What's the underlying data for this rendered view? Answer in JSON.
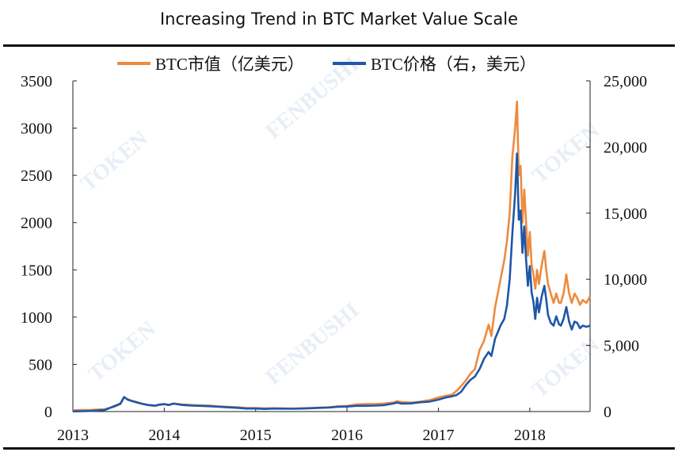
{
  "header": {
    "title": "Increasing Trend in BTC Market Value Scale"
  },
  "chart_data": {
    "type": "line",
    "title": "Increasing Trend in BTC Market Value Scale",
    "xlabel": "",
    "ylabel": "",
    "x_ticks": [
      "2013",
      "2014",
      "2015",
      "2016",
      "2017",
      "2018"
    ],
    "y_left": {
      "lim": [
        0,
        3500
      ],
      "ticks": [
        "0",
        "500",
        "1000",
        "1500",
        "2000",
        "2500",
        "3000",
        "3500"
      ]
    },
    "y_right": {
      "lim": [
        0,
        25000
      ],
      "ticks": [
        "0",
        "5,000",
        "10,000",
        "15,000",
        "20,000",
        "25,000"
      ]
    },
    "legend": {
      "position": "top-center"
    },
    "grid": false,
    "series": [
      {
        "name": "BTC市值（亿美元）",
        "axis": "left",
        "color": "#ed8b3e",
        "points": [
          [
            2013.0,
            15
          ],
          [
            2013.2,
            18
          ],
          [
            2013.35,
            25
          ],
          [
            2013.45,
            50
          ],
          [
            2013.52,
            80
          ],
          [
            2013.56,
            150
          ],
          [
            2013.6,
            130
          ],
          [
            2013.65,
            110
          ],
          [
            2013.7,
            95
          ],
          [
            2013.75,
            85
          ],
          [
            2013.82,
            70
          ],
          [
            2013.9,
            60
          ],
          [
            2013.95,
            75
          ],
          [
            2014.0,
            80
          ],
          [
            2014.05,
            70
          ],
          [
            2014.1,
            85
          ],
          [
            2014.2,
            75
          ],
          [
            2014.3,
            70
          ],
          [
            2014.4,
            65
          ],
          [
            2014.5,
            62
          ],
          [
            2014.6,
            55
          ],
          [
            2014.7,
            50
          ],
          [
            2014.8,
            45
          ],
          [
            2014.9,
            38
          ],
          [
            2015.0,
            38
          ],
          [
            2015.1,
            33
          ],
          [
            2015.2,
            35
          ],
          [
            2015.3,
            33
          ],
          [
            2015.4,
            32
          ],
          [
            2015.5,
            34
          ],
          [
            2015.6,
            38
          ],
          [
            2015.7,
            42
          ],
          [
            2015.8,
            45
          ],
          [
            2015.9,
            55
          ],
          [
            2016.0,
            60
          ],
          [
            2016.1,
            75
          ],
          [
            2016.2,
            80
          ],
          [
            2016.3,
            80
          ],
          [
            2016.4,
            85
          ],
          [
            2016.5,
            95
          ],
          [
            2016.55,
            110
          ],
          [
            2016.6,
            100
          ],
          [
            2016.7,
            95
          ],
          [
            2016.8,
            105
          ],
          [
            2016.9,
            120
          ],
          [
            2017.0,
            150
          ],
          [
            2017.05,
            160
          ],
          [
            2017.1,
            170
          ],
          [
            2017.15,
            180
          ],
          [
            2017.2,
            220
          ],
          [
            2017.25,
            270
          ],
          [
            2017.3,
            330
          ],
          [
            2017.35,
            400
          ],
          [
            2017.4,
            450
          ],
          [
            2017.45,
            650
          ],
          [
            2017.5,
            750
          ],
          [
            2017.55,
            920
          ],
          [
            2017.58,
            800
          ],
          [
            2017.62,
            1100
          ],
          [
            2017.65,
            1250
          ],
          [
            2017.68,
            1400
          ],
          [
            2017.72,
            1600
          ],
          [
            2017.75,
            1800
          ],
          [
            2017.78,
            2100
          ],
          [
            2017.81,
            2700
          ],
          [
            2017.84,
            3000
          ],
          [
            2017.86,
            3280
          ],
          [
            2017.88,
            2500
          ],
          [
            2017.9,
            2600
          ],
          [
            2017.92,
            2000
          ],
          [
            2017.94,
            2350
          ],
          [
            2017.96,
            2000
          ],
          [
            2017.98,
            1650
          ],
          [
            2018.0,
            1900
          ],
          [
            2018.02,
            1550
          ],
          [
            2018.04,
            1450
          ],
          [
            2018.06,
            1300
          ],
          [
            2018.08,
            1500
          ],
          [
            2018.1,
            1350
          ],
          [
            2018.13,
            1550
          ],
          [
            2018.16,
            1700
          ],
          [
            2018.18,
            1500
          ],
          [
            2018.2,
            1350
          ],
          [
            2018.23,
            1250
          ],
          [
            2018.26,
            1150
          ],
          [
            2018.29,
            1250
          ],
          [
            2018.32,
            1150
          ],
          [
            2018.34,
            1150
          ],
          [
            2018.37,
            1250
          ],
          [
            2018.4,
            1450
          ],
          [
            2018.43,
            1250
          ],
          [
            2018.46,
            1150
          ],
          [
            2018.49,
            1250
          ],
          [
            2018.52,
            1200
          ],
          [
            2018.55,
            1130
          ],
          [
            2018.58,
            1180
          ],
          [
            2018.62,
            1150
          ],
          [
            2018.66,
            1220
          ]
        ]
      },
      {
        "name": "BTC价格（右，美元）",
        "axis": "right",
        "color": "#1f56a8",
        "points": [
          [
            2013.0,
            13
          ],
          [
            2013.2,
            50
          ],
          [
            2013.35,
            120
          ],
          [
            2013.45,
            400
          ],
          [
            2013.52,
            600
          ],
          [
            2013.56,
            1100
          ],
          [
            2013.6,
            900
          ],
          [
            2013.65,
            800
          ],
          [
            2013.7,
            700
          ],
          [
            2013.75,
            600
          ],
          [
            2013.82,
            500
          ],
          [
            2013.9,
            450
          ],
          [
            2013.95,
            520
          ],
          [
            2014.0,
            560
          ],
          [
            2014.05,
            500
          ],
          [
            2014.1,
            600
          ],
          [
            2014.2,
            500
          ],
          [
            2014.3,
            450
          ],
          [
            2014.4,
            430
          ],
          [
            2014.5,
            400
          ],
          [
            2014.6,
            360
          ],
          [
            2014.7,
            320
          ],
          [
            2014.8,
            280
          ],
          [
            2014.9,
            230
          ],
          [
            2015.0,
            230
          ],
          [
            2015.1,
            200
          ],
          [
            2015.2,
            230
          ],
          [
            2015.3,
            220
          ],
          [
            2015.4,
            210
          ],
          [
            2015.5,
            230
          ],
          [
            2015.6,
            250
          ],
          [
            2015.7,
            280
          ],
          [
            2015.8,
            300
          ],
          [
            2015.9,
            360
          ],
          [
            2016.0,
            380
          ],
          [
            2016.1,
            430
          ],
          [
            2016.2,
            440
          ],
          [
            2016.3,
            450
          ],
          [
            2016.4,
            480
          ],
          [
            2016.5,
            600
          ],
          [
            2016.55,
            680
          ],
          [
            2016.6,
            600
          ],
          [
            2016.7,
            620
          ],
          [
            2016.8,
            700
          ],
          [
            2016.9,
            750
          ],
          [
            2017.0,
            900
          ],
          [
            2017.05,
            1000
          ],
          [
            2017.1,
            1100
          ],
          [
            2017.15,
            1150
          ],
          [
            2017.2,
            1250
          ],
          [
            2017.25,
            1500
          ],
          [
            2017.3,
            2000
          ],
          [
            2017.35,
            2400
          ],
          [
            2017.4,
            2650
          ],
          [
            2017.45,
            3200
          ],
          [
            2017.5,
            4000
          ],
          [
            2017.55,
            4500
          ],
          [
            2017.58,
            4200
          ],
          [
            2017.62,
            5500
          ],
          [
            2017.65,
            6000
          ],
          [
            2017.68,
            6500
          ],
          [
            2017.72,
            7000
          ],
          [
            2017.75,
            8000
          ],
          [
            2017.78,
            10000
          ],
          [
            2017.81,
            13500
          ],
          [
            2017.84,
            16500
          ],
          [
            2017.86,
            19500
          ],
          [
            2017.88,
            14500
          ],
          [
            2017.9,
            15200
          ],
          [
            2017.92,
            12000
          ],
          [
            2017.94,
            14000
          ],
          [
            2017.96,
            11500
          ],
          [
            2017.98,
            9500
          ],
          [
            2018.0,
            11000
          ],
          [
            2018.02,
            9000
          ],
          [
            2018.04,
            8300
          ],
          [
            2018.06,
            7000
          ],
          [
            2018.08,
            8600
          ],
          [
            2018.1,
            7500
          ],
          [
            2018.13,
            8700
          ],
          [
            2018.16,
            9500
          ],
          [
            2018.18,
            8500
          ],
          [
            2018.2,
            7300
          ],
          [
            2018.23,
            6700
          ],
          [
            2018.26,
            6500
          ],
          [
            2018.29,
            7200
          ],
          [
            2018.32,
            6600
          ],
          [
            2018.34,
            6500
          ],
          [
            2018.37,
            7000
          ],
          [
            2018.4,
            7900
          ],
          [
            2018.43,
            6800
          ],
          [
            2018.46,
            6200
          ],
          [
            2018.49,
            6800
          ],
          [
            2018.52,
            6700
          ],
          [
            2018.55,
            6300
          ],
          [
            2018.58,
            6500
          ],
          [
            2018.62,
            6400
          ],
          [
            2018.66,
            6500
          ]
        ]
      }
    ],
    "watermarks": [
      "TOKEN",
      "FENBUSHI"
    ]
  }
}
